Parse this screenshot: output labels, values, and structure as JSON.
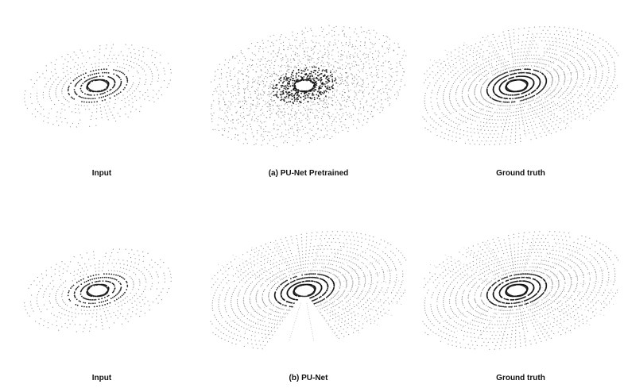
{
  "figure": {
    "rows": [
      {
        "panels": [
          {
            "caption": "Input",
            "style": "sparse"
          },
          {
            "caption": "(a) PU-Net Pretrained",
            "style": "noisy"
          },
          {
            "caption": "Ground truth",
            "style": "dense"
          }
        ]
      },
      {
        "panels": [
          {
            "caption": "Input",
            "style": "sparse"
          },
          {
            "caption": "(b) PU-Net",
            "style": "fan"
          },
          {
            "caption": "Ground truth",
            "style": "dense"
          }
        ]
      }
    ],
    "colors": {
      "points": "#3a3a3a",
      "core": "#111111"
    }
  }
}
